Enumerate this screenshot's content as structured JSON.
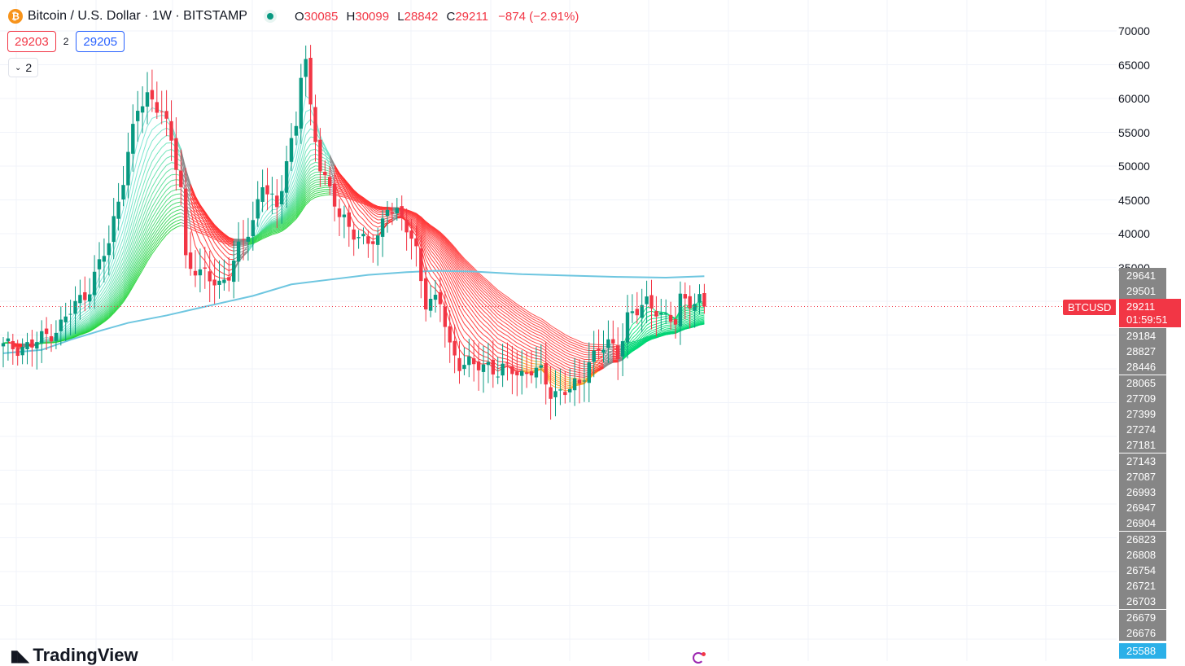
{
  "legend": {
    "coin_symbol": "₿",
    "title": "Bitcoin / U.S. Dollar · 1W · BITSTAMP",
    "open_key": "O",
    "open": "30085",
    "high_key": "H",
    "high": "30099",
    "low_key": "L",
    "low": "28842",
    "close_key": "C",
    "close": "29211",
    "change": "−874 (−2.91%)"
  },
  "trade": {
    "sell": "29203",
    "spread": "2",
    "buy": "29205"
  },
  "indicators_toggle": {
    "count": "2"
  },
  "branding": {
    "name": "TradingView"
  },
  "price_tags": {
    "symbol": "BTCUSD",
    "last": "29211",
    "countdown": "01:59:51",
    "ma_values": [
      "29641",
      "29501",
      "29184",
      "28827",
      "28446",
      "28065",
      "27709",
      "27399",
      "27274",
      "27181",
      "27143",
      "27087",
      "26993",
      "26947",
      "26904",
      "26823",
      "26808",
      "26754",
      "26721",
      "26703",
      "26679",
      "26676"
    ],
    "lowest": "25588"
  },
  "colors": {
    "up": "#089981",
    "down": "#f23645",
    "ema200": "#6ec6e0",
    "ribbon_rise": "#00e676",
    "ribbon_fall": "#ff3d3d",
    "ribbon_neutral": "#8a8a8a"
  },
  "chart_data": {
    "type": "candlestick",
    "symbol": "BTCUSD",
    "interval": "1W",
    "exchange": "BITSTAMP",
    "y_axis": {
      "ticks": [
        70000,
        65000,
        60000,
        55000,
        50000,
        45000,
        40000,
        35000
      ],
      "range": [
        20000,
        72000
      ],
      "position": "right"
    },
    "grid": true,
    "current_price": 29211,
    "series": [
      {
        "type": "ohlc",
        "anchors_close": [
          [
            0,
            23200
          ],
          [
            6,
            23400
          ],
          [
            12,
            26500
          ],
          [
            18,
            32200
          ],
          [
            22,
            38500
          ],
          [
            26,
            52000
          ],
          [
            28,
            58000
          ],
          [
            30,
            60500
          ],
          [
            33,
            58500
          ],
          [
            35,
            53000
          ],
          [
            37,
            47000
          ],
          [
            38,
            36500
          ],
          [
            41,
            33800
          ],
          [
            45,
            32800
          ],
          [
            47,
            34000
          ],
          [
            50,
            39000
          ],
          [
            52,
            42200
          ],
          [
            54,
            47500
          ],
          [
            55,
            46000
          ],
          [
            57,
            43200
          ],
          [
            59,
            51500
          ],
          [
            61,
            56000
          ],
          [
            62,
            63500
          ],
          [
            63,
            65000
          ],
          [
            64,
            58000
          ],
          [
            66,
            50500
          ],
          [
            68,
            46500
          ],
          [
            70,
            42200
          ],
          [
            73,
            40600
          ],
          [
            76,
            38400
          ],
          [
            78,
            38900
          ],
          [
            80,
            44800
          ],
          [
            82,
            43000
          ],
          [
            84,
            40500
          ],
          [
            86,
            37500
          ],
          [
            88,
            30100
          ],
          [
            91,
            29600
          ],
          [
            93,
            23400
          ],
          [
            95,
            21000
          ],
          [
            98,
            20200
          ],
          [
            101,
            20800
          ],
          [
            103,
            19500
          ],
          [
            106,
            19800
          ],
          [
            108,
            19400
          ],
          [
            110,
            19900
          ],
          [
            112,
            19100
          ],
          [
            114,
            16600
          ],
          [
            116,
            16800
          ],
          [
            118,
            16900
          ],
          [
            120,
            17400
          ],
          [
            122,
            21500
          ],
          [
            124,
            23000
          ],
          [
            126,
            23300
          ],
          [
            128,
            22400
          ],
          [
            130,
            28000
          ],
          [
            132,
            28300
          ],
          [
            134,
            29600
          ],
          [
            136,
            29200
          ],
          [
            138,
            27400
          ],
          [
            140,
            26600
          ],
          [
            141,
            30200
          ],
          [
            143,
            30400
          ],
          [
            145,
            30100
          ],
          [
            146,
            29211
          ]
        ]
      },
      {
        "name": "",
        "type": "ema200",
        "anchors": [
          [
            0,
            22300
          ],
          [
            8,
            22800
          ],
          [
            14,
            24300
          ],
          [
            20,
            25600
          ],
          [
            26,
            26800
          ],
          [
            34,
            27900
          ],
          [
            42,
            29200
          ],
          [
            52,
            30800
          ],
          [
            60,
            32500
          ],
          [
            68,
            33200
          ],
          [
            76,
            33900
          ],
          [
            84,
            34300
          ],
          [
            90,
            34500
          ],
          [
            98,
            34400
          ],
          [
            108,
            34000
          ],
          [
            118,
            33800
          ],
          [
            128,
            33600
          ],
          [
            138,
            33500
          ],
          [
            146,
            33700
          ]
        ]
      },
      {
        "name": "",
        "type": "ema-ribbon",
        "lines": 24
      }
    ]
  }
}
